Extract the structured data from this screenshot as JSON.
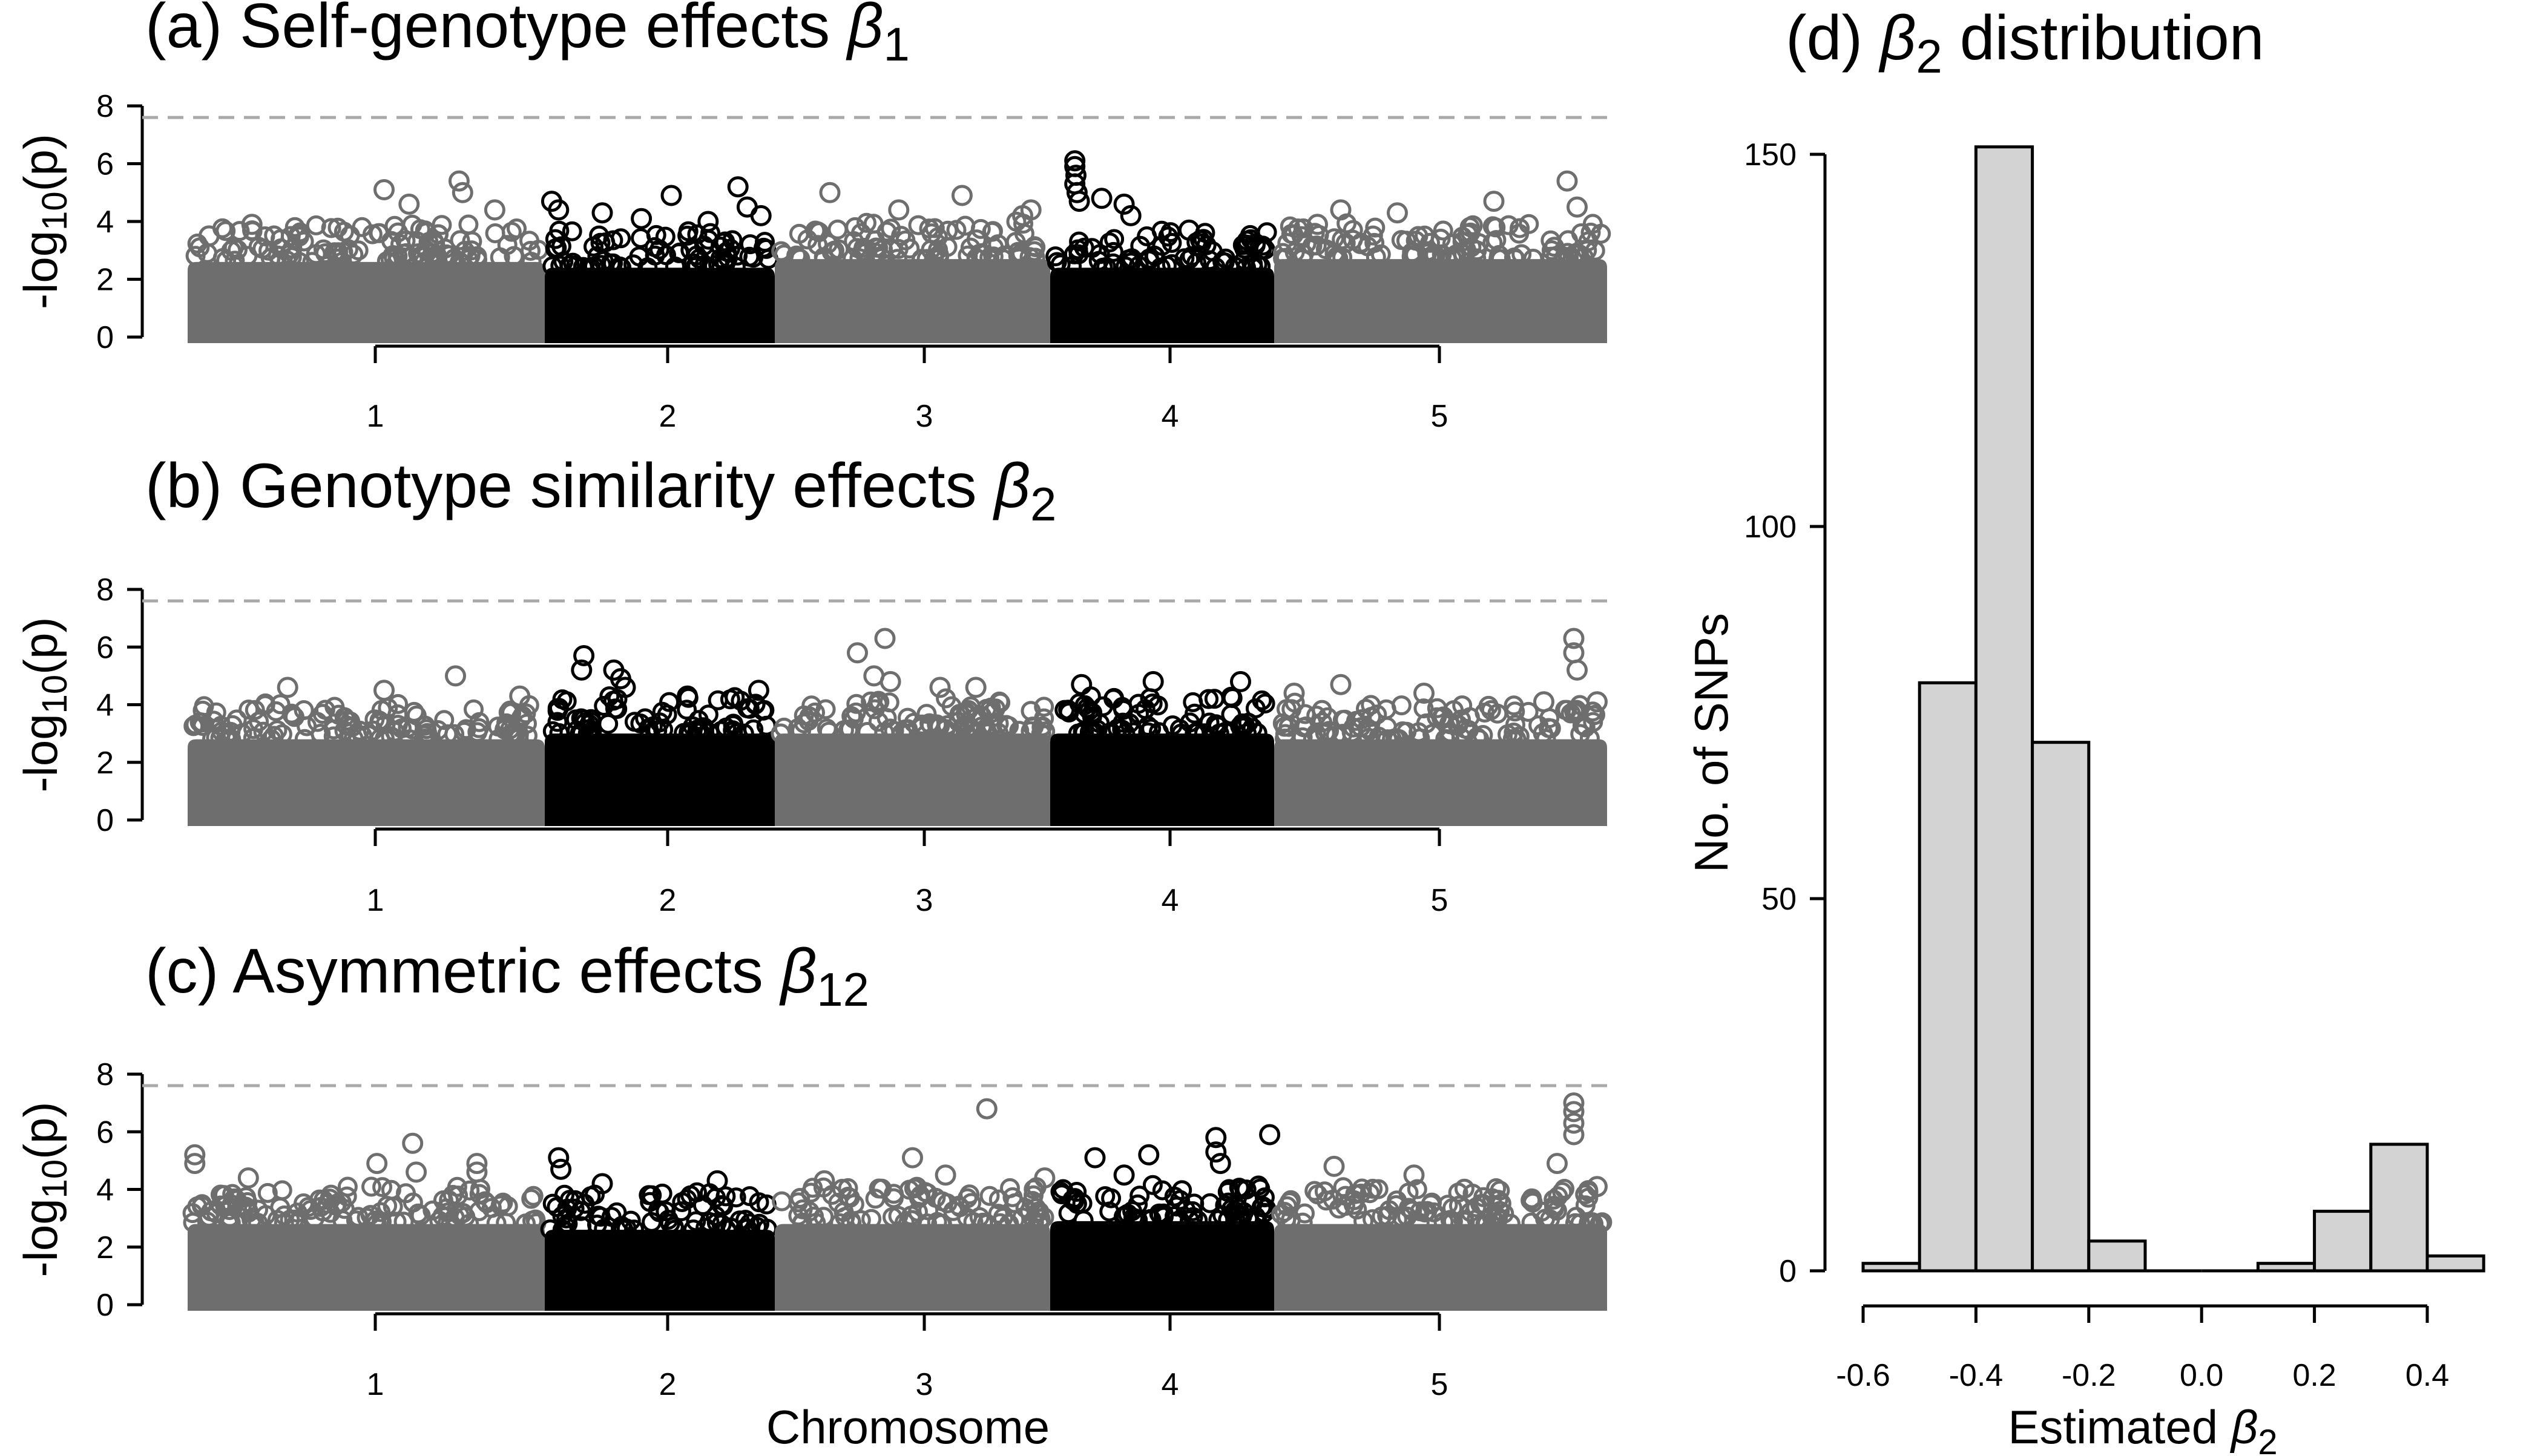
{
  "chart_data": [
    {
      "type": "scatter",
      "panel": "a",
      "title_prefix": "(a) Self-genotype effects ",
      "title_symbol": "β",
      "title_sub": "1",
      "ylabel_prefix": "-log",
      "ylabel_sub": "10",
      "ylabel_suffix": "(p)",
      "xlabel": "",
      "ylim": [
        0,
        8
      ],
      "yticks": [
        "0",
        "2",
        "4",
        "6",
        "8"
      ],
      "threshold": 7.6,
      "categories": [
        "1",
        "2",
        "3",
        "4",
        "5"
      ],
      "chromosome_colors": [
        "#6e6e6e",
        "#000000",
        "#6e6e6e",
        "#000000",
        "#6e6e6e"
      ],
      "band_top": [
        3.6,
        3.4,
        3.7,
        3.4,
        3.7
      ],
      "peaks": [
        {
          "chromosome": "1",
          "pos": 0.06,
          "value": 3.5
        },
        {
          "chromosome": "1",
          "pos": 0.18,
          "value": 3.9
        },
        {
          "chromosome": "1",
          "pos": 0.55,
          "value": 5.1
        },
        {
          "chromosome": "1",
          "pos": 0.62,
          "value": 4.6
        },
        {
          "chromosome": "1",
          "pos": 0.76,
          "value": 5.4
        },
        {
          "chromosome": "1",
          "pos": 0.77,
          "value": 5.0
        },
        {
          "chromosome": "1",
          "pos": 0.86,
          "value": 4.4
        },
        {
          "chromosome": "2",
          "pos": 0.03,
          "value": 4.7
        },
        {
          "chromosome": "2",
          "pos": 0.06,
          "value": 4.4
        },
        {
          "chromosome": "2",
          "pos": 0.25,
          "value": 4.3
        },
        {
          "chromosome": "2",
          "pos": 0.42,
          "value": 4.1
        },
        {
          "chromosome": "2",
          "pos": 0.55,
          "value": 4.9
        },
        {
          "chromosome": "2",
          "pos": 0.71,
          "value": 4.0
        },
        {
          "chromosome": "2",
          "pos": 0.84,
          "value": 5.2
        },
        {
          "chromosome": "2",
          "pos": 0.88,
          "value": 4.5
        },
        {
          "chromosome": "2",
          "pos": 0.94,
          "value": 4.2
        },
        {
          "chromosome": "3",
          "pos": 0.2,
          "value": 5.0
        },
        {
          "chromosome": "3",
          "pos": 0.45,
          "value": 4.4
        },
        {
          "chromosome": "3",
          "pos": 0.68,
          "value": 4.9
        },
        {
          "chromosome": "3",
          "pos": 0.9,
          "value": 4.2
        },
        {
          "chromosome": "3",
          "pos": 0.93,
          "value": 4.4
        },
        {
          "chromosome": "4",
          "pos": 0.11,
          "value": 6.1
        },
        {
          "chromosome": "4",
          "pos": 0.11,
          "value": 5.9
        },
        {
          "chromosome": "4",
          "pos": 0.115,
          "value": 5.6
        },
        {
          "chromosome": "4",
          "pos": 0.11,
          "value": 5.3
        },
        {
          "chromosome": "4",
          "pos": 0.12,
          "value": 5.0
        },
        {
          "chromosome": "4",
          "pos": 0.13,
          "value": 4.7
        },
        {
          "chromosome": "4",
          "pos": 0.23,
          "value": 4.8
        },
        {
          "chromosome": "4",
          "pos": 0.33,
          "value": 4.6
        },
        {
          "chromosome": "4",
          "pos": 0.36,
          "value": 4.2
        },
        {
          "chromosome": "4",
          "pos": 0.62,
          "value": 3.7
        },
        {
          "chromosome": "5",
          "pos": 0.13,
          "value": 3.9
        },
        {
          "chromosome": "5",
          "pos": 0.2,
          "value": 4.4
        },
        {
          "chromosome": "5",
          "pos": 0.37,
          "value": 4.3
        },
        {
          "chromosome": "5",
          "pos": 0.66,
          "value": 4.7
        },
        {
          "chromosome": "5",
          "pos": 0.88,
          "value": 5.4
        },
        {
          "chromosome": "5",
          "pos": 0.91,
          "value": 4.5
        }
      ]
    },
    {
      "type": "scatter",
      "panel": "b",
      "title_prefix": "(b) Genotype similarity effects ",
      "title_symbol": "β",
      "title_sub": "2",
      "ylabel_prefix": "-log",
      "ylabel_sub": "10",
      "ylabel_suffix": "(p)",
      "xlabel": "",
      "ylim": [
        0,
        8
      ],
      "yticks": [
        "0",
        "2",
        "4",
        "6",
        "8"
      ],
      "threshold": 7.6,
      "categories": [
        "1",
        "2",
        "3",
        "4",
        "5"
      ],
      "chromosome_colors": [
        "#6e6e6e",
        "#000000",
        "#6e6e6e",
        "#000000",
        "#6e6e6e"
      ],
      "band_top": [
        3.8,
        4.0,
        4.0,
        4.0,
        3.8
      ],
      "peaks": [
        {
          "chromosome": "1",
          "pos": 0.28,
          "value": 4.6
        },
        {
          "chromosome": "1",
          "pos": 0.55,
          "value": 4.5
        },
        {
          "chromosome": "1",
          "pos": 0.75,
          "value": 5.0
        },
        {
          "chromosome": "1",
          "pos": 0.93,
          "value": 4.3
        },
        {
          "chromosome": "2",
          "pos": 0.17,
          "value": 5.7
        },
        {
          "chromosome": "2",
          "pos": 0.16,
          "value": 5.2
        },
        {
          "chromosome": "2",
          "pos": 0.3,
          "value": 5.2
        },
        {
          "chromosome": "2",
          "pos": 0.33,
          "value": 4.9
        },
        {
          "chromosome": "2",
          "pos": 0.35,
          "value": 4.6
        },
        {
          "chromosome": "2",
          "pos": 0.62,
          "value": 4.3
        },
        {
          "chromosome": "2",
          "pos": 0.93,
          "value": 4.5
        },
        {
          "chromosome": "3",
          "pos": 0.3,
          "value": 5.8
        },
        {
          "chromosome": "3",
          "pos": 0.4,
          "value": 6.3
        },
        {
          "chromosome": "3",
          "pos": 0.36,
          "value": 5.0
        },
        {
          "chromosome": "3",
          "pos": 0.42,
          "value": 4.8
        },
        {
          "chromosome": "3",
          "pos": 0.6,
          "value": 4.6
        },
        {
          "chromosome": "3",
          "pos": 0.73,
          "value": 4.6
        },
        {
          "chromosome": "4",
          "pos": 0.14,
          "value": 4.7
        },
        {
          "chromosome": "4",
          "pos": 0.46,
          "value": 4.8
        },
        {
          "chromosome": "4",
          "pos": 0.85,
          "value": 4.8
        },
        {
          "chromosome": "5",
          "pos": 0.06,
          "value": 4.4
        },
        {
          "chromosome": "5",
          "pos": 0.2,
          "value": 4.7
        },
        {
          "chromosome": "5",
          "pos": 0.45,
          "value": 4.4
        },
        {
          "chromosome": "5",
          "pos": 0.81,
          "value": 4.1
        },
        {
          "chromosome": "5",
          "pos": 0.9,
          "value": 6.3
        },
        {
          "chromosome": "5",
          "pos": 0.9,
          "value": 5.8
        },
        {
          "chromosome": "5",
          "pos": 0.91,
          "value": 5.2
        },
        {
          "chromosome": "5",
          "pos": 0.97,
          "value": 4.1
        }
      ]
    },
    {
      "type": "scatter",
      "panel": "c",
      "title_prefix": "(c) Asymmetric effects ",
      "title_symbol": "β",
      "title_sub": "12",
      "ylabel_prefix": "-log",
      "ylabel_sub": "10",
      "ylabel_suffix": "(p)",
      "xlabel": "Chromosome",
      "ylim": [
        0,
        8
      ],
      "yticks": [
        "0",
        "2",
        "4",
        "6",
        "8"
      ],
      "threshold": 7.6,
      "categories": [
        "1",
        "2",
        "3",
        "4",
        "5"
      ],
      "chromosome_colors": [
        "#6e6e6e",
        "#000000",
        "#6e6e6e",
        "#000000",
        "#6e6e6e"
      ],
      "band_top": [
        3.8,
        3.6,
        3.8,
        3.9,
        3.8
      ],
      "peaks": [
        {
          "chromosome": "1",
          "pos": 0.02,
          "value": 5.2
        },
        {
          "chromosome": "1",
          "pos": 0.02,
          "value": 4.9
        },
        {
          "chromosome": "1",
          "pos": 0.17,
          "value": 4.4
        },
        {
          "chromosome": "1",
          "pos": 0.53,
          "value": 4.9
        },
        {
          "chromosome": "1",
          "pos": 0.63,
          "value": 5.6
        },
        {
          "chromosome": "1",
          "pos": 0.64,
          "value": 4.6
        },
        {
          "chromosome": "1",
          "pos": 0.81,
          "value": 4.9
        },
        {
          "chromosome": "1",
          "pos": 0.81,
          "value": 4.6
        },
        {
          "chromosome": "2",
          "pos": 0.06,
          "value": 5.1
        },
        {
          "chromosome": "2",
          "pos": 0.07,
          "value": 4.7
        },
        {
          "chromosome": "2",
          "pos": 0.25,
          "value": 4.2
        },
        {
          "chromosome": "2",
          "pos": 0.75,
          "value": 4.3
        },
        {
          "chromosome": "3",
          "pos": 0.18,
          "value": 4.3
        },
        {
          "chromosome": "3",
          "pos": 0.5,
          "value": 5.1
        },
        {
          "chromosome": "3",
          "pos": 0.77,
          "value": 6.8
        },
        {
          "chromosome": "3",
          "pos": 0.62,
          "value": 4.5
        },
        {
          "chromosome": "3",
          "pos": 0.98,
          "value": 4.4
        },
        {
          "chromosome": "4",
          "pos": 0.2,
          "value": 5.1
        },
        {
          "chromosome": "4",
          "pos": 0.33,
          "value": 4.5
        },
        {
          "chromosome": "4",
          "pos": 0.44,
          "value": 5.2
        },
        {
          "chromosome": "4",
          "pos": 0.74,
          "value": 5.8
        },
        {
          "chromosome": "4",
          "pos": 0.74,
          "value": 5.3
        },
        {
          "chromosome": "4",
          "pos": 0.76,
          "value": 4.9
        },
        {
          "chromosome": "4",
          "pos": 0.98,
          "value": 5.9
        },
        {
          "chromosome": "5",
          "pos": 0.18,
          "value": 4.8
        },
        {
          "chromosome": "5",
          "pos": 0.42,
          "value": 4.5
        },
        {
          "chromosome": "5",
          "pos": 0.85,
          "value": 4.9
        },
        {
          "chromosome": "5",
          "pos": 0.9,
          "value": 7.0
        },
        {
          "chromosome": "5",
          "pos": 0.9,
          "value": 6.7
        },
        {
          "chromosome": "5",
          "pos": 0.9,
          "value": 6.3
        },
        {
          "chromosome": "5",
          "pos": 0.9,
          "value": 5.9
        },
        {
          "chromosome": "5",
          "pos": 0.97,
          "value": 4.1
        }
      ]
    },
    {
      "type": "bar",
      "panel": "d",
      "title_prefix": "(d) ",
      "title_symbol": "β",
      "title_sub": "2",
      "title_suffix": " distribution",
      "xlabel_prefix": "Estimated ",
      "xlabel_symbol": "β",
      "xlabel_sub": "2",
      "ylabel": "No. of SNPs",
      "bin_edges": [
        -0.6,
        -0.5,
        -0.4,
        -0.3,
        -0.2,
        -0.1,
        0.0,
        0.1,
        0.2,
        0.3,
        0.4,
        0.5
      ],
      "values": [
        1,
        79,
        151,
        71,
        4,
        0,
        0,
        1,
        8,
        17,
        2
      ],
      "xlim": [
        -0.6,
        0.5
      ],
      "xticks": [
        "-0.6",
        "-0.4",
        "-0.2",
        "0.0",
        "0.2",
        "0.4"
      ],
      "ylim": [
        0,
        150
      ],
      "yticks": [
        "0",
        "50",
        "100",
        "150"
      ],
      "bar_color": "#d3d3d3"
    }
  ]
}
